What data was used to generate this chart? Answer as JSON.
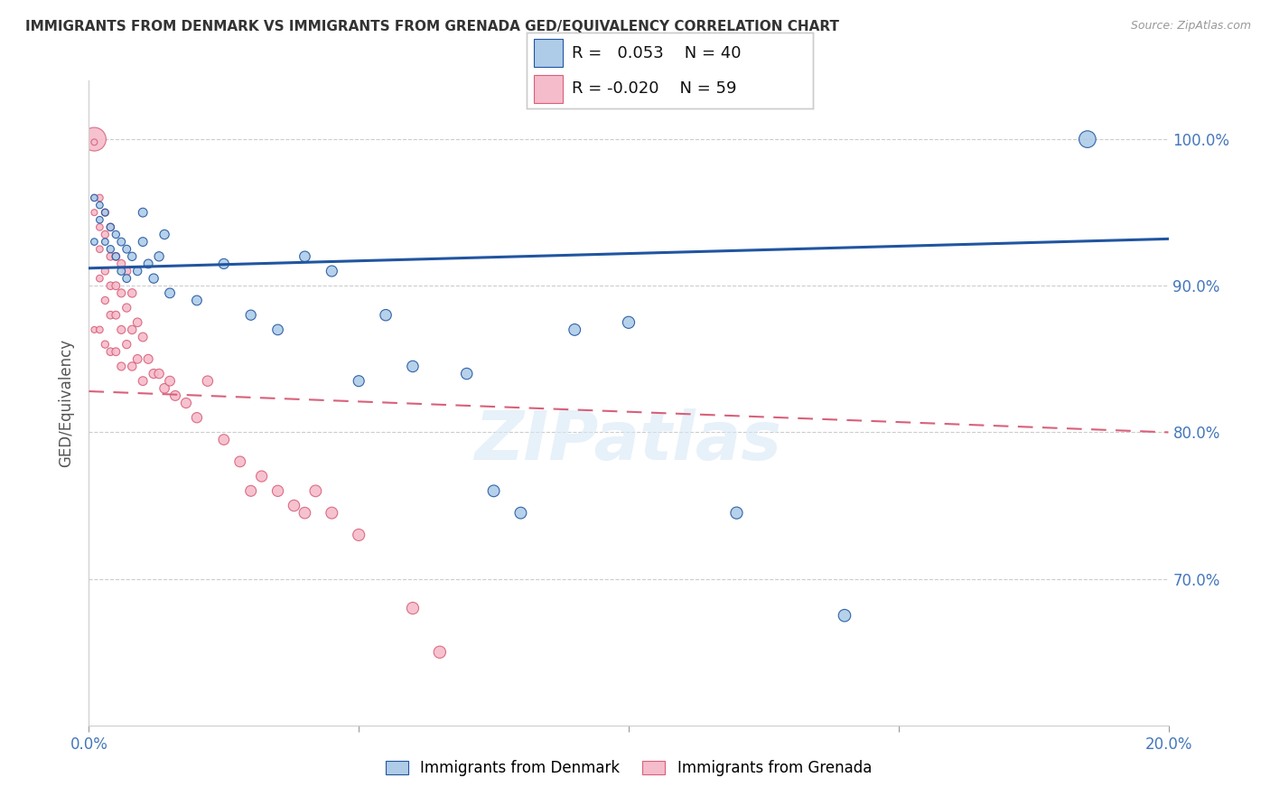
{
  "title": "IMMIGRANTS FROM DENMARK VS IMMIGRANTS FROM GRENADA GED/EQUIVALENCY CORRELATION CHART",
  "source": "Source: ZipAtlas.com",
  "ylabel": "GED/Equivalency",
  "ytick_vals": [
    0.7,
    0.8,
    0.9,
    1.0
  ],
  "xlim": [
    0.0,
    0.2
  ],
  "ylim": [
    0.6,
    1.04
  ],
  "legend_R_denmark": "0.053",
  "legend_N_denmark": "40",
  "legend_R_grenada": "-0.020",
  "legend_N_grenada": "59",
  "denmark_color": "#aecce8",
  "grenada_color": "#f5bccb",
  "denmark_line_color": "#2155a0",
  "grenada_line_color": "#d9607a",
  "dk_trend_y0": 0.912,
  "dk_trend_y1": 0.932,
  "gr_trend_y0": 0.828,
  "gr_trend_y1": 0.8,
  "denmark_scatter_x": [
    0.001,
    0.001,
    0.002,
    0.002,
    0.003,
    0.003,
    0.004,
    0.004,
    0.005,
    0.005,
    0.006,
    0.006,
    0.007,
    0.007,
    0.008,
    0.009,
    0.01,
    0.01,
    0.011,
    0.012,
    0.013,
    0.014,
    0.015,
    0.02,
    0.025,
    0.03,
    0.035,
    0.04,
    0.045,
    0.05,
    0.055,
    0.06,
    0.07,
    0.075,
    0.08,
    0.09,
    0.1,
    0.12,
    0.14,
    0.185
  ],
  "denmark_scatter_y": [
    0.96,
    0.93,
    0.955,
    0.945,
    0.95,
    0.93,
    0.94,
    0.925,
    0.935,
    0.92,
    0.93,
    0.91,
    0.925,
    0.905,
    0.92,
    0.91,
    0.95,
    0.93,
    0.915,
    0.905,
    0.92,
    0.935,
    0.895,
    0.89,
    0.915,
    0.88,
    0.87,
    0.92,
    0.91,
    0.835,
    0.88,
    0.845,
    0.84,
    0.76,
    0.745,
    0.87,
    0.875,
    0.745,
    0.675,
    1.0
  ],
  "denmark_scatter_size": [
    30,
    30,
    30,
    30,
    30,
    30,
    35,
    35,
    35,
    35,
    40,
    40,
    40,
    40,
    45,
    45,
    50,
    50,
    50,
    55,
    55,
    55,
    60,
    60,
    65,
    65,
    70,
    70,
    75,
    75,
    80,
    80,
    80,
    85,
    85,
    85,
    90,
    90,
    95,
    180
  ],
  "grenada_scatter_x": [
    0.001,
    0.001,
    0.001,
    0.001,
    0.001,
    0.002,
    0.002,
    0.002,
    0.002,
    0.002,
    0.003,
    0.003,
    0.003,
    0.003,
    0.003,
    0.004,
    0.004,
    0.004,
    0.004,
    0.004,
    0.005,
    0.005,
    0.005,
    0.005,
    0.006,
    0.006,
    0.006,
    0.006,
    0.007,
    0.007,
    0.007,
    0.008,
    0.008,
    0.008,
    0.009,
    0.009,
    0.01,
    0.01,
    0.011,
    0.012,
    0.013,
    0.014,
    0.015,
    0.016,
    0.018,
    0.02,
    0.022,
    0.025,
    0.028,
    0.03,
    0.032,
    0.035,
    0.038,
    0.04,
    0.042,
    0.045,
    0.05,
    0.06,
    0.065
  ],
  "grenada_scatter_y": [
    1.0,
    0.998,
    0.96,
    0.95,
    0.87,
    0.96,
    0.94,
    0.925,
    0.905,
    0.87,
    0.95,
    0.935,
    0.91,
    0.89,
    0.86,
    0.94,
    0.92,
    0.9,
    0.88,
    0.855,
    0.92,
    0.9,
    0.88,
    0.855,
    0.915,
    0.895,
    0.87,
    0.845,
    0.91,
    0.885,
    0.86,
    0.895,
    0.87,
    0.845,
    0.875,
    0.85,
    0.865,
    0.835,
    0.85,
    0.84,
    0.84,
    0.83,
    0.835,
    0.825,
    0.82,
    0.81,
    0.835,
    0.795,
    0.78,
    0.76,
    0.77,
    0.76,
    0.75,
    0.745,
    0.76,
    0.745,
    0.73,
    0.68,
    0.65
  ],
  "grenada_scatter_size": [
    350,
    25,
    25,
    25,
    25,
    30,
    30,
    30,
    30,
    30,
    35,
    35,
    35,
    35,
    35,
    38,
    38,
    38,
    38,
    38,
    40,
    40,
    40,
    40,
    42,
    42,
    42,
    42,
    44,
    44,
    44,
    46,
    46,
    46,
    48,
    48,
    50,
    50,
    52,
    54,
    56,
    58,
    60,
    62,
    64,
    66,
    68,
    70,
    72,
    74,
    76,
    78,
    80,
    82,
    84,
    86,
    88,
    90,
    92
  ]
}
